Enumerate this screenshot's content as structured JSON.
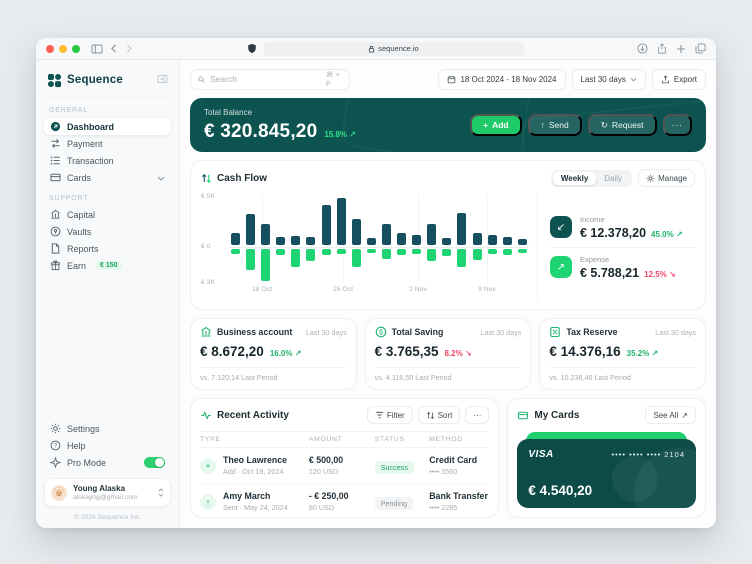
{
  "browser": {
    "url": "sequence.io"
  },
  "sidebar": {
    "logo_text": "Sequence",
    "sections": {
      "general": "GENERAL",
      "support": "SUPPORT"
    },
    "general_items": [
      {
        "label": "Dashboard"
      },
      {
        "label": "Payment"
      },
      {
        "label": "Transaction"
      },
      {
        "label": "Cards"
      }
    ],
    "support_items": [
      {
        "label": "Capital"
      },
      {
        "label": "Vaults"
      },
      {
        "label": "Reports"
      },
      {
        "label": "Earn",
        "badge": "€ 150"
      }
    ],
    "settings_label": "Settings",
    "help_label": "Help",
    "promode_label": "Pro Mode",
    "user": {
      "name": "Young Alaska",
      "email": "alskayng@gmail.com"
    },
    "copyright": "© 2024 Sequence Inc."
  },
  "header": {
    "search_placeholder": "Search",
    "search_shortcut": "⌘ + F",
    "date_range": "18 Oct 2024 - 18 Nov 2024",
    "period": "Last 30 days",
    "export_label": "Export"
  },
  "balance": {
    "label": "Total Balance",
    "amount": "€ 320.845,20",
    "change": "15.8%",
    "direction": "up",
    "add_label": "Add",
    "send_label": "Send",
    "request_label": "Request"
  },
  "cashflow": {
    "title": "Cash Flow",
    "weekly": "Weekly",
    "daily": "Daily",
    "manage": "Manage",
    "income": {
      "label": "Income",
      "amount": "€ 12.378,20",
      "change": "45.0%",
      "direction": "up"
    },
    "expense": {
      "label": "Expense",
      "amount": "€ 5.788,21",
      "change": "12.5%",
      "direction": "down"
    }
  },
  "chart_data": {
    "type": "bar",
    "title": "Cash Flow",
    "y_axis_labels": [
      "€ 5K",
      "€ 0",
      "€ 3K"
    ],
    "ylim": [
      -3000,
      5000
    ],
    "grid": true,
    "x_ticks": [
      "18 Oct",
      "25 Oct",
      "2 Nov",
      "9 Nov"
    ],
    "x_tick_positions_pct": [
      11,
      38,
      63,
      86
    ],
    "series": [
      {
        "name": "inflow",
        "color": "#164f60",
        "values": [
          1200,
          3200,
          2200,
          800,
          900,
          800,
          4200,
          4900,
          2700,
          700,
          2200,
          1200,
          1000,
          2200,
          700,
          3300,
          1200,
          1000,
          800,
          600
        ]
      },
      {
        "name": "outflow",
        "color": "#1ed473",
        "values": [
          -500,
          -2000,
          -3000,
          -600,
          -1700,
          -1100,
          -600,
          -500,
          -1700,
          -400,
          -900,
          -600,
          -500,
          -1100,
          -700,
          -1700,
          -1000,
          -500,
          -600,
          -400
        ]
      }
    ]
  },
  "stats": [
    {
      "title": "Business account",
      "period": "Last 30 days",
      "amount": "€ 8.672,20",
      "change": "16.0%",
      "direction": "up",
      "compare": "vs. 7.120,14 Last Period"
    },
    {
      "title": "Total Saving",
      "period": "Last 30 days",
      "amount": "€ 3.765,35",
      "change": "8.2%",
      "direction": "down",
      "compare": "vs. 4.116,50 Last Period"
    },
    {
      "title": "Tax Reserve",
      "period": "Last 30 days",
      "amount": "€ 14.376,16",
      "change": "35.2%",
      "direction": "up",
      "compare": "vs. 10.238,46 Last Period"
    }
  ],
  "activity": {
    "title": "Recent Activity",
    "filter": "Filter",
    "sort": "Sort",
    "columns": [
      "TYPE",
      "AMOUNT",
      "STATUS",
      "METHOD"
    ],
    "rows": [
      {
        "icon_glyph": "+",
        "name": "Theo Lawrence",
        "sub": "Add  ·  Oct 18, 2024",
        "amount": "€ 500,00",
        "amount_sub": "120 USD",
        "status": "Success",
        "method": "Credit Card",
        "method_sub": "•••• 3560"
      },
      {
        "icon_glyph": "↑",
        "name": "Amy March",
        "sub": "Sent  ·  May 24, 2024",
        "amount": "- € 250,00",
        "amount_sub": "80 USD",
        "status": "Pending",
        "method": "Bank Transfer",
        "method_sub": "•••• 2285"
      }
    ]
  },
  "mycards": {
    "title": "My Cards",
    "see_all": "See All",
    "brand": "VISA",
    "masked": "•••• •••• •••• 2104",
    "balance": "€ 4.540,20"
  },
  "icons": {
    "more": "···",
    "plus": "+",
    "arrow_up": "↑",
    "request": "↻",
    "see_all_arrow": "↗",
    "income_arrow": "↙",
    "expense_arrow": "↗"
  }
}
